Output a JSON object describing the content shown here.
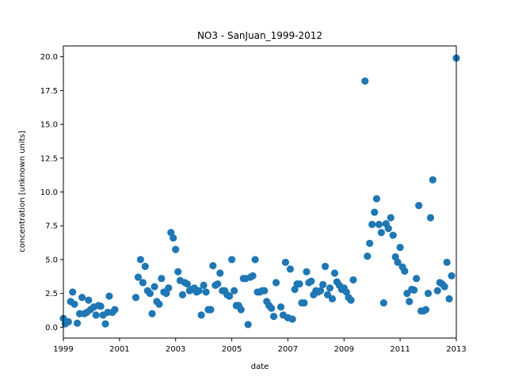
{
  "chart_data": {
    "type": "scatter",
    "title": "NO3 - SanJuan_1999-2012",
    "xlabel": "date",
    "ylabel": "concentration [unknown units]",
    "xlim": [
      "1999-01-01",
      "2013-01-01"
    ],
    "ylim": [
      -0.8,
      20.8
    ],
    "x_ticks": [
      "1999",
      "2001",
      "2003",
      "2005",
      "2007",
      "2009",
      "2011",
      "2013"
    ],
    "y_ticks": [
      "0.0",
      "2.5",
      "5.0",
      "7.5",
      "10.0",
      "12.5",
      "15.0",
      "17.5",
      "20.0"
    ],
    "grid": false,
    "marker_color": "#1f77b4",
    "series": [
      {
        "points": [
          [
            "1999-01-01",
            0.65
          ],
          [
            "1999-01-25",
            0.25
          ],
          [
            "1999-03-08",
            0.4
          ],
          [
            "1999-04-05",
            1.9
          ],
          [
            "1999-05-01",
            2.6
          ],
          [
            "1999-05-25",
            1.7
          ],
          [
            "1999-07-01",
            0.3
          ],
          [
            "1999-08-01",
            1.0
          ],
          [
            "1999-09-01",
            2.2
          ],
          [
            "1999-10-01",
            1.0
          ],
          [
            "1999-11-01",
            1.1
          ],
          [
            "1999-11-25",
            2.0
          ],
          [
            "1999-12-20",
            1.3
          ],
          [
            "2000-02-01",
            1.5
          ],
          [
            "2000-03-01",
            0.9
          ],
          [
            "2000-04-01",
            1.6
          ],
          [
            "2000-05-01",
            1.55
          ],
          [
            "2000-06-01",
            0.9
          ],
          [
            "2000-07-01",
            0.25
          ],
          [
            "2000-08-01",
            1.1
          ],
          [
            "2000-08-20",
            2.3
          ],
          [
            "2000-10-01",
            1.1
          ],
          [
            "2000-11-01",
            1.3
          ],
          [
            "2001-08-01",
            2.2
          ],
          [
            "2001-09-01",
            3.7
          ],
          [
            "2001-10-01",
            5.0
          ],
          [
            "2001-11-01",
            3.3
          ],
          [
            "2001-12-01",
            4.5
          ],
          [
            "2002-01-01",
            2.7
          ],
          [
            "2002-02-01",
            2.5
          ],
          [
            "2002-03-01",
            1.0
          ],
          [
            "2002-04-01",
            3.0
          ],
          [
            "2002-05-01",
            1.9
          ],
          [
            "2002-06-01",
            1.7
          ],
          [
            "2002-07-01",
            3.6
          ],
          [
            "2002-08-01",
            2.6
          ],
          [
            "2002-09-01",
            2.5
          ],
          [
            "2002-10-01",
            2.9
          ],
          [
            "2002-11-01",
            7.0
          ],
          [
            "2002-12-01",
            6.6
          ],
          [
            "2003-01-01",
            5.75
          ],
          [
            "2003-02-01",
            4.1
          ],
          [
            "2003-03-01",
            3.45
          ],
          [
            "2003-04-01",
            2.4
          ],
          [
            "2003-05-01",
            3.3
          ],
          [
            "2003-06-01",
            3.2
          ],
          [
            "2003-07-01",
            2.7
          ],
          [
            "2003-08-01",
            2.8
          ],
          [
            "2003-09-01",
            2.9
          ],
          [
            "2003-10-01",
            2.6
          ],
          [
            "2003-11-01",
            2.7
          ],
          [
            "2003-12-01",
            0.9
          ],
          [
            "2004-01-01",
            3.1
          ],
          [
            "2004-02-01",
            2.6
          ],
          [
            "2004-03-01",
            1.3
          ],
          [
            "2004-04-01",
            1.3
          ],
          [
            "2004-05-01",
            4.55
          ],
          [
            "2004-06-01",
            3.1
          ],
          [
            "2004-07-01",
            3.2
          ],
          [
            "2004-08-01",
            4.0
          ],
          [
            "2004-09-01",
            2.7
          ],
          [
            "2004-10-01",
            2.7
          ],
          [
            "2004-11-01",
            2.4
          ],
          [
            "2004-12-01",
            2.3
          ],
          [
            "2005-01-01",
            5.0
          ],
          [
            "2005-02-01",
            2.7
          ],
          [
            "2005-03-01",
            1.6
          ],
          [
            "2005-04-01",
            1.6
          ],
          [
            "2005-05-01",
            1.3
          ],
          [
            "2005-06-01",
            3.6
          ],
          [
            "2005-07-01",
            3.6
          ],
          [
            "2005-08-01",
            0.2
          ],
          [
            "2005-09-01",
            3.7
          ],
          [
            "2005-10-01",
            3.8
          ],
          [
            "2005-11-01",
            5.0
          ],
          [
            "2005-12-01",
            2.6
          ],
          [
            "2006-01-01",
            2.6
          ],
          [
            "2006-02-01",
            2.7
          ],
          [
            "2006-03-01",
            2.7
          ],
          [
            "2006-04-01",
            1.9
          ],
          [
            "2006-05-01",
            1.6
          ],
          [
            "2006-06-01",
            1.4
          ],
          [
            "2006-07-01",
            0.8
          ],
          [
            "2006-08-01",
            3.3
          ],
          [
            "2006-10-01",
            1.5
          ],
          [
            "2006-11-01",
            0.9
          ],
          [
            "2006-12-01",
            4.8
          ],
          [
            "2007-01-01",
            0.7
          ],
          [
            "2007-02-01",
            4.3
          ],
          [
            "2007-03-01",
            0.6
          ],
          [
            "2007-04-01",
            2.8
          ],
          [
            "2007-05-01",
            3.2
          ],
          [
            "2007-06-01",
            3.2
          ],
          [
            "2007-07-01",
            1.8
          ],
          [
            "2007-08-01",
            1.8
          ],
          [
            "2007-09-01",
            4.1
          ],
          [
            "2007-10-01",
            3.3
          ],
          [
            "2007-11-01",
            3.4
          ],
          [
            "2007-12-01",
            2.4
          ],
          [
            "2008-01-01",
            2.7
          ],
          [
            "2008-02-01",
            2.6
          ],
          [
            "2008-03-01",
            2.7
          ],
          [
            "2008-04-01",
            3.15
          ],
          [
            "2008-05-01",
            4.5
          ],
          [
            "2008-06-01",
            2.4
          ],
          [
            "2008-07-01",
            2.9
          ],
          [
            "2008-08-01",
            2.1
          ],
          [
            "2008-09-01",
            4.0
          ],
          [
            "2008-10-01",
            3.35
          ],
          [
            "2008-11-01",
            3.1
          ],
          [
            "2008-12-01",
            2.8
          ],
          [
            "2009-01-01",
            2.9
          ],
          [
            "2009-02-01",
            2.6
          ],
          [
            "2009-03-01",
            2.2
          ],
          [
            "2009-04-01",
            2.0
          ],
          [
            "2009-05-01",
            3.5
          ],
          [
            "2009-10-01",
            18.2
          ],
          [
            "2009-11-01",
            5.25
          ],
          [
            "2009-12-01",
            6.2
          ],
          [
            "2010-01-01",
            7.6
          ],
          [
            "2010-02-01",
            8.5
          ],
          [
            "2010-03-01",
            9.5
          ],
          [
            "2010-04-01",
            7.6
          ],
          [
            "2010-05-01",
            7.0
          ],
          [
            "2010-06-01",
            1.8
          ],
          [
            "2010-07-01",
            7.65
          ],
          [
            "2010-08-01",
            7.3
          ],
          [
            "2010-09-01",
            8.1
          ],
          [
            "2010-10-01",
            6.8
          ],
          [
            "2010-11-01",
            5.2
          ],
          [
            "2010-12-01",
            4.8
          ],
          [
            "2011-01-01",
            5.9
          ],
          [
            "2011-02-01",
            4.45
          ],
          [
            "2011-03-01",
            4.15
          ],
          [
            "2011-04-01",
            2.5
          ],
          [
            "2011-05-01",
            1.9
          ],
          [
            "2011-06-01",
            2.8
          ],
          [
            "2011-07-01",
            2.75
          ],
          [
            "2011-08-01",
            3.6
          ],
          [
            "2011-09-01",
            9.0
          ],
          [
            "2011-10-01",
            1.2
          ],
          [
            "2011-11-01",
            1.2
          ],
          [
            "2011-12-01",
            1.3
          ],
          [
            "2012-01-01",
            2.5
          ],
          [
            "2012-02-01",
            8.1
          ],
          [
            "2012-03-01",
            10.9
          ],
          [
            "2012-05-01",
            2.7
          ],
          [
            "2012-06-01",
            3.3
          ],
          [
            "2012-07-01",
            3.2
          ],
          [
            "2012-08-01",
            3.0
          ],
          [
            "2012-09-01",
            4.8
          ],
          [
            "2012-10-01",
            2.1
          ],
          [
            "2012-11-01",
            3.8
          ],
          [
            "2013-01-01",
            19.9
          ]
        ]
      }
    ]
  }
}
